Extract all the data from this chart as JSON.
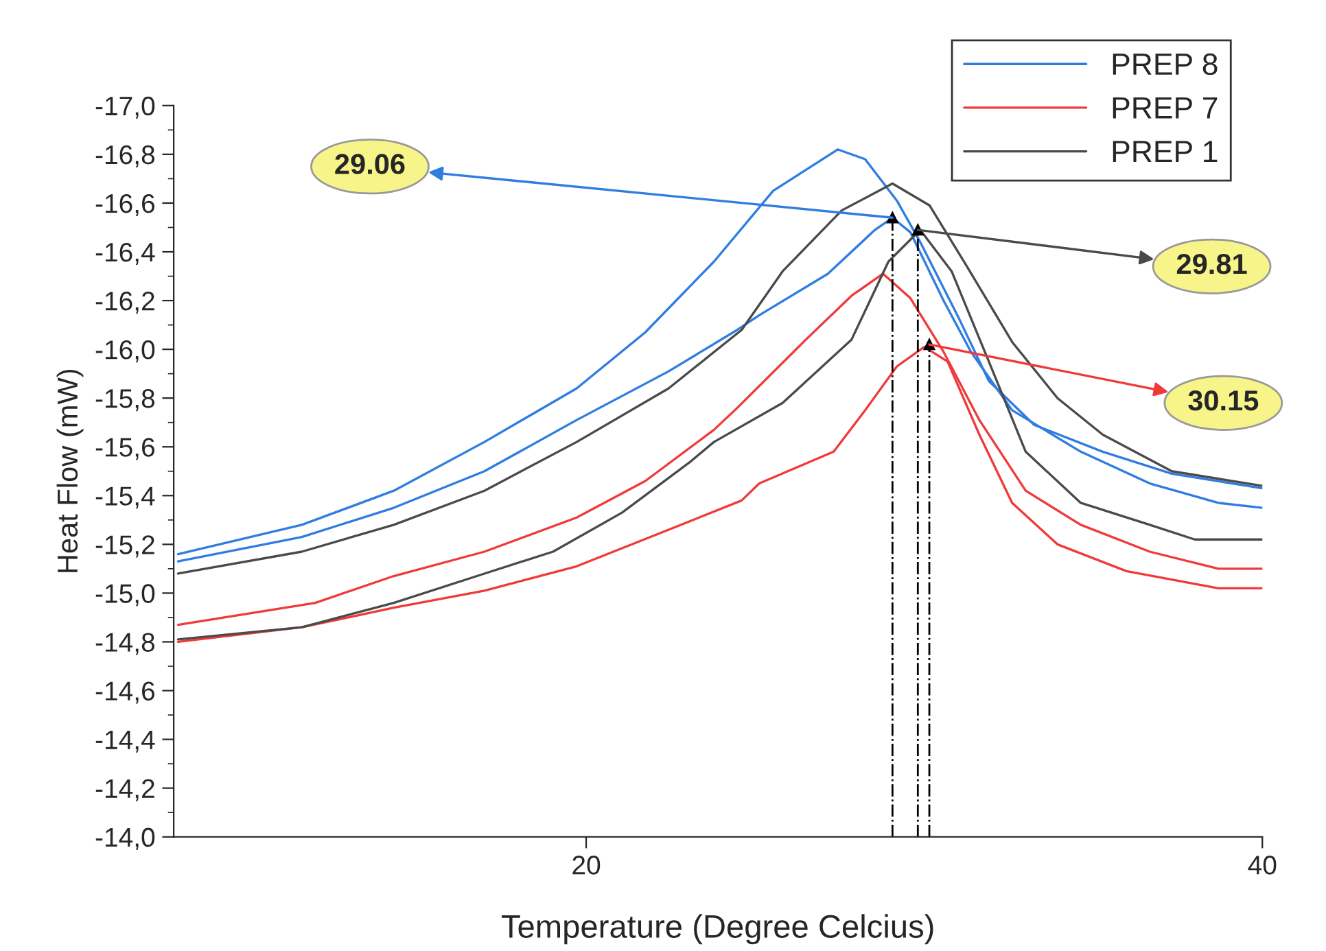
{
  "chart_data": {
    "type": "line",
    "xlabel": "Temperature (Degree Celcius)",
    "ylabel": "Heat Flow (mW)",
    "xlim": [
      7.8,
      40
    ],
    "xticks": [
      20,
      40
    ],
    "ylim": [
      -14,
      -17
    ],
    "yticks": [
      {
        "value": -17,
        "label": "-17,0"
      },
      {
        "value": -16.8,
        "label": "-16,8"
      },
      {
        "value": -16.6,
        "label": "-16,6"
      },
      {
        "value": -16.4,
        "label": "-16,4"
      },
      {
        "value": -16.2,
        "label": "-16,2"
      },
      {
        "value": -16,
        "label": "-16,0"
      },
      {
        "value": -15.8,
        "label": "-15,8"
      },
      {
        "value": -15.6,
        "label": "-15,6"
      },
      {
        "value": -15.4,
        "label": "-15,4"
      },
      {
        "value": -15.2,
        "label": "-15,2"
      },
      {
        "value": -15,
        "label": "-15,0"
      },
      {
        "value": -14.8,
        "label": "-14,8"
      },
      {
        "value": -14.6,
        "label": "-14,6"
      },
      {
        "value": -14.4,
        "label": "-14,4"
      },
      {
        "value": -14.2,
        "label": "-14,2"
      },
      {
        "value": -14,
        "label": "-14,0"
      }
    ],
    "grid": false,
    "legend": "top right",
    "marker": "none",
    "line_style": "solid",
    "series": [
      {
        "name": "PREP 8",
        "color": "#2f7de1",
        "x": [
          7.93,
          11.59,
          14.31,
          16.99,
          19.72,
          21.75,
          23.78,
          25.53,
          27.44,
          28.25,
          29.19,
          29.88,
          30.98,
          31.91,
          33.25,
          35.28,
          37.32,
          40.0
        ],
        "values": [
          -15.16,
          -15.28,
          -15.42,
          -15.62,
          -15.84,
          -16.07,
          -16.36,
          -16.65,
          -16.82,
          -16.78,
          -16.61,
          -16.44,
          -16.14,
          -15.87,
          -15.69,
          -15.58,
          -15.49,
          -15.43
        ]
      },
      {
        "color": "#2f7de1",
        "x": [
          7.93,
          11.59,
          14.31,
          16.99,
          19.72,
          22.44,
          24.47,
          25.12,
          27.15,
          28.54,
          29.06,
          29.59,
          30.57,
          31.38,
          32.6,
          34.63,
          36.67,
          38.7,
          40.0
        ],
        "values": [
          -15.13,
          -15.23,
          -15.35,
          -15.5,
          -15.71,
          -15.91,
          -16.08,
          -16.14,
          -16.31,
          -16.49,
          -16.54,
          -16.48,
          -16.2,
          -15.99,
          -15.75,
          -15.58,
          -15.45,
          -15.37,
          -15.35
        ]
      },
      {
        "name": "PREP 7",
        "color": "#f03a3a",
        "x": [
          7.93,
          11.99,
          14.31,
          16.99,
          19.72,
          21.75,
          23.78,
          24.47,
          26.5,
          27.85,
          28.78,
          29.59,
          30.57,
          31.63,
          33.0,
          34.63,
          36.67,
          38.7,
          40.0
        ],
        "values": [
          -14.87,
          -14.96,
          -15.07,
          -15.17,
          -15.31,
          -15.46,
          -15.67,
          -15.76,
          -16.04,
          -16.22,
          -16.31,
          -16.21,
          -15.99,
          -15.71,
          -15.42,
          -15.28,
          -15.17,
          -15.1,
          -15.1
        ]
      },
      {
        "color": "#f03a3a",
        "x": [
          7.93,
          11.59,
          14.31,
          16.99,
          19.72,
          22.44,
          24.6,
          25.12,
          27.32,
          28.25,
          29.19,
          30.0,
          30.69,
          31.63,
          32.6,
          33.94,
          35.98,
          38.7,
          40.0
        ],
        "values": [
          -14.8,
          -14.86,
          -14.94,
          -15.01,
          -15.11,
          -15.26,
          -15.38,
          -15.45,
          -15.58,
          -15.75,
          -15.93,
          -16.01,
          -15.95,
          -15.65,
          -15.37,
          -15.2,
          -15.09,
          -15.02,
          -15.02
        ]
      },
      {
        "name": "PREP 1",
        "color": "#4a4a4a",
        "x": [
          7.93,
          11.59,
          14.31,
          16.99,
          19.72,
          22.44,
          24.6,
          25.81,
          27.56,
          29.06,
          30.16,
          31.22,
          32.6,
          33.94,
          35.28,
          37.32,
          40.0
        ],
        "values": [
          -15.08,
          -15.17,
          -15.28,
          -15.42,
          -15.62,
          -15.84,
          -16.08,
          -16.32,
          -16.57,
          -16.68,
          -16.59,
          -16.35,
          -16.03,
          -15.8,
          -15.65,
          -15.5,
          -15.44
        ]
      },
      {
        "color": "#4a4a4a",
        "x": [
          7.93,
          11.59,
          14.31,
          16.99,
          19.02,
          21.06,
          23.09,
          23.78,
          25.81,
          27.85,
          28.94,
          29.88,
          30.81,
          31.91,
          33.0,
          34.63,
          36.67,
          38.0,
          40.0
        ],
        "values": [
          -14.81,
          -14.86,
          -14.96,
          -15.08,
          -15.17,
          -15.33,
          -15.54,
          -15.62,
          -15.78,
          -16.04,
          -16.36,
          -16.49,
          -16.32,
          -15.95,
          -15.58,
          -15.37,
          -15.28,
          -15.22,
          -15.22
        ]
      }
    ],
    "ref_lines": [
      {
        "axis": "x",
        "value": 29.06,
        "color": "#000000",
        "line_style": "dashdot"
      },
      {
        "axis": "x",
        "value": 29.81,
        "color": "#000000",
        "line_style": "dashdot"
      },
      {
        "axis": "x",
        "value": 30.15,
        "color": "#000000",
        "line_style": "dashdot"
      }
    ],
    "annotations": [
      {
        "text": "29.06",
        "x": 29.06,
        "y": -16.54
      },
      {
        "text": "29.81",
        "x": 29.81,
        "y": -16.49
      },
      {
        "text": "30.15",
        "x": 30.15,
        "y": -16.02
      }
    ]
  }
}
